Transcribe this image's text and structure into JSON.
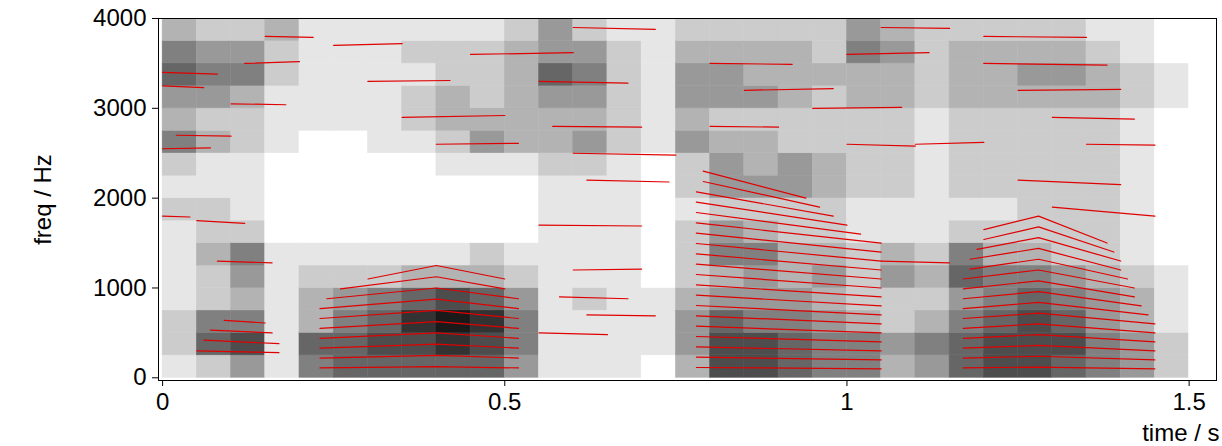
{
  "chart_data": {
    "type": "spectrogram",
    "x_label": "time / s",
    "y_label": "freq / Hz",
    "xlim": [
      -0.006,
      1.54
    ],
    "ylim": [
      -30,
      4000
    ],
    "xticks": [
      0,
      0.5,
      1,
      1.5
    ],
    "yticks": [
      0,
      1000,
      2000,
      3000,
      4000
    ],
    "color": "#e00000",
    "zlim": [
      0,
      9
    ],
    "time_bins": [
      0,
      0.05,
      0.1,
      0.15,
      0.2,
      0.25,
      0.3,
      0.35,
      0.4,
      0.45,
      0.5,
      0.55,
      0.6,
      0.65,
      0.7,
      0.75,
      0.8,
      0.85,
      0.9,
      0.95,
      1,
      1.05,
      1.1,
      1.15,
      1.2,
      1.25,
      1.3,
      1.35,
      1.4,
      1.45,
      1.5,
      1.55
    ],
    "freq_bins": [
      0,
      250,
      500,
      750,
      1000,
      1250,
      1500,
      1750,
      2000,
      2250,
      2500,
      2750,
      3000,
      3250,
      3500,
      3750,
      4000
    ],
    "intensity": [
      [
        1,
        2,
        2,
        1,
        1,
        1,
        1,
        2,
        1,
        2,
        5,
        3,
        4,
        6,
        5,
        3
      ],
      [
        2,
        6,
        5,
        2,
        2,
        3,
        2,
        2,
        1,
        1,
        3,
        2,
        4,
        5,
        4,
        2
      ],
      [
        4,
        7,
        5,
        3,
        4,
        5,
        2,
        1,
        1,
        1,
        2,
        2,
        3,
        5,
        4,
        2
      ],
      [
        1,
        1,
        1,
        1,
        1,
        1,
        0,
        0,
        0,
        0,
        1,
        1,
        1,
        2,
        2,
        3
      ],
      [
        5,
        6,
        3,
        3,
        2,
        1,
        0,
        0,
        0,
        0,
        0,
        1,
        1,
        1,
        1,
        1
      ],
      [
        6,
        6,
        5,
        4,
        2,
        1,
        0,
        0,
        0,
        0,
        0,
        1,
        1,
        1,
        1,
        1
      ],
      [
        6,
        7,
        6,
        5,
        2,
        1,
        0,
        0,
        0,
        0,
        1,
        1,
        1,
        1,
        1,
        1
      ],
      [
        6,
        7,
        8,
        6,
        3,
        1,
        0,
        0,
        0,
        0,
        1,
        2,
        2,
        1,
        2,
        1
      ],
      [
        6,
        8,
        9,
        7,
        3,
        1,
        0,
        0,
        0,
        1,
        2,
        3,
        3,
        2,
        2,
        1
      ],
      [
        6,
        7,
        8,
        6,
        3,
        2,
        0,
        0,
        0,
        1,
        4,
        3,
        2,
        2,
        2,
        1
      ],
      [
        4,
        5,
        5,
        4,
        2,
        1,
        0,
        0,
        0,
        1,
        3,
        3,
        3,
        3,
        3,
        2
      ],
      [
        1,
        1,
        1,
        1,
        1,
        1,
        1,
        1,
        1,
        2,
        3,
        3,
        4,
        6,
        4,
        4
      ],
      [
        1,
        1,
        1,
        2,
        1,
        1,
        1,
        1,
        1,
        2,
        4,
        3,
        4,
        5,
        4,
        2
      ],
      [
        1,
        1,
        1,
        1,
        1,
        1,
        1,
        1,
        1,
        1,
        2,
        2,
        2,
        2,
        2,
        1
      ],
      [
        0,
        1,
        1,
        1,
        0,
        0,
        0,
        0,
        0,
        0,
        1,
        1,
        1,
        1,
        1,
        1
      ],
      [
        3,
        4,
        4,
        3,
        2,
        2,
        2,
        1,
        2,
        2,
        4,
        3,
        4,
        4,
        3,
        2
      ],
      [
        7,
        7,
        6,
        4,
        3,
        5,
        4,
        2,
        4,
        4,
        3,
        2,
        4,
        4,
        3,
        2
      ],
      [
        7,
        7,
        5,
        4,
        4,
        5,
        3,
        2,
        4,
        3,
        3,
        2,
        4,
        3,
        3,
        2
      ],
      [
        6,
        6,
        5,
        4,
        3,
        3,
        2,
        2,
        4,
        4,
        2,
        2,
        3,
        3,
        3,
        2
      ],
      [
        5,
        5,
        4,
        3,
        4,
        3,
        2,
        2,
        3,
        3,
        2,
        2,
        2,
        3,
        2,
        2
      ],
      [
        5,
        5,
        3,
        2,
        2,
        2,
        1,
        1,
        2,
        2,
        2,
        2,
        3,
        3,
        5,
        4
      ],
      [
        3,
        4,
        2,
        2,
        4,
        3,
        1,
        1,
        2,
        2,
        2,
        2,
        3,
        3,
        4,
        3
      ],
      [
        4,
        5,
        3,
        2,
        3,
        2,
        1,
        1,
        1,
        1,
        1,
        1,
        2,
        2,
        2,
        2
      ],
      [
        6,
        6,
        5,
        4,
        6,
        5,
        2,
        1,
        2,
        2,
        2,
        2,
        3,
        3,
        3,
        2
      ],
      [
        7,
        7,
        6,
        5,
        5,
        3,
        2,
        1,
        2,
        2,
        2,
        2,
        3,
        3,
        3,
        2
      ],
      [
        7,
        7,
        7,
        6,
        5,
        3,
        2,
        2,
        2,
        2,
        2,
        2,
        3,
        4,
        3,
        2
      ],
      [
        6,
        7,
        6,
        5,
        4,
        2,
        2,
        2,
        2,
        2,
        2,
        2,
        3,
        4,
        3,
        2
      ],
      [
        5,
        5,
        4,
        4,
        3,
        2,
        2,
        2,
        2,
        2,
        2,
        2,
        3,
        3,
        2,
        1
      ],
      [
        4,
        4,
        3,
        3,
        2,
        1,
        1,
        1,
        1,
        1,
        1,
        1,
        2,
        2,
        1,
        1
      ],
      [
        2,
        2,
        1,
        1,
        1,
        0,
        0,
        0,
        0,
        0,
        0,
        0,
        1,
        1,
        0,
        0
      ],
      [
        0,
        0,
        0,
        0,
        0,
        0,
        0,
        0,
        0,
        0,
        0,
        0,
        0,
        0,
        0,
        0
      ]
    ],
    "tracks": [
      [
        [
          0.23,
          110
        ],
        [
          0.4,
          125
        ],
        [
          0.52,
          110
        ]
      ],
      [
        [
          0.23,
          220
        ],
        [
          0.4,
          250
        ],
        [
          0.52,
          220
        ]
      ],
      [
        [
          0.23,
          330
        ],
        [
          0.4,
          375
        ],
        [
          0.52,
          330
        ]
      ],
      [
        [
          0.23,
          440
        ],
        [
          0.4,
          500
        ],
        [
          0.52,
          440
        ]
      ],
      [
        [
          0.23,
          550
        ],
        [
          0.4,
          625
        ],
        [
          0.52,
          550
        ]
      ],
      [
        [
          0.23,
          660
        ],
        [
          0.4,
          750
        ],
        [
          0.52,
          660
        ]
      ],
      [
        [
          0.23,
          770
        ],
        [
          0.4,
          875
        ],
        [
          0.52,
          770
        ]
      ],
      [
        [
          0.24,
          880
        ],
        [
          0.4,
          1000
        ],
        [
          0.52,
          880
        ]
      ],
      [
        [
          0.26,
          990
        ],
        [
          0.4,
          1125
        ],
        [
          0.5,
          990
        ]
      ],
      [
        [
          0.3,
          1100
        ],
        [
          0.4,
          1250
        ],
        [
          0.5,
          1100
        ]
      ],
      [
        [
          0.78,
          115
        ],
        [
          1.05,
          100
        ]
      ],
      [
        [
          0.78,
          230
        ],
        [
          1.05,
          200
        ]
      ],
      [
        [
          0.78,
          345
        ],
        [
          1.05,
          300
        ]
      ],
      [
        [
          0.78,
          460
        ],
        [
          1.05,
          400
        ]
      ],
      [
        [
          0.78,
          575
        ],
        [
          1.05,
          500
        ]
      ],
      [
        [
          0.78,
          690
        ],
        [
          1.05,
          600
        ]
      ],
      [
        [
          0.78,
          805
        ],
        [
          1.05,
          700
        ]
      ],
      [
        [
          0.78,
          920
        ],
        [
          1.05,
          800
        ]
      ],
      [
        [
          0.78,
          1035
        ],
        [
          1.05,
          900
        ]
      ],
      [
        [
          0.78,
          1150
        ],
        [
          1.05,
          1000
        ]
      ],
      [
        [
          0.78,
          1265
        ],
        [
          1.05,
          1100
        ]
      ],
      [
        [
          0.78,
          1380
        ],
        [
          1.05,
          1200
        ]
      ],
      [
        [
          0.78,
          1495
        ],
        [
          1.05,
          1300
        ]
      ],
      [
        [
          0.78,
          1610
        ],
        [
          1.05,
          1400
        ]
      ],
      [
        [
          0.78,
          1725
        ],
        [
          1.05,
          1500
        ]
      ],
      [
        [
          0.78,
          1840
        ],
        [
          1.02,
          1600
        ]
      ],
      [
        [
          0.78,
          1955
        ],
        [
          1.0,
          1700
        ]
      ],
      [
        [
          0.78,
          2070
        ],
        [
          0.98,
          1800
        ]
      ],
      [
        [
          0.79,
          2185
        ],
        [
          0.96,
          1900
        ]
      ],
      [
        [
          0.79,
          2300
        ],
        [
          0.94,
          2000
        ]
      ],
      [
        [
          1.17,
          110
        ],
        [
          1.28,
          120
        ],
        [
          1.45,
          100
        ]
      ],
      [
        [
          1.17,
          220
        ],
        [
          1.28,
          240
        ],
        [
          1.45,
          200
        ]
      ],
      [
        [
          1.17,
          330
        ],
        [
          1.28,
          360
        ],
        [
          1.45,
          300
        ]
      ],
      [
        [
          1.17,
          440
        ],
        [
          1.28,
          480
        ],
        [
          1.45,
          400
        ]
      ],
      [
        [
          1.17,
          550
        ],
        [
          1.28,
          600
        ],
        [
          1.45,
          500
        ]
      ],
      [
        [
          1.17,
          660
        ],
        [
          1.28,
          720
        ],
        [
          1.45,
          600
        ]
      ],
      [
        [
          1.17,
          770
        ],
        [
          1.28,
          840
        ],
        [
          1.44,
          700
        ]
      ],
      [
        [
          1.17,
          880
        ],
        [
          1.28,
          960
        ],
        [
          1.43,
          800
        ]
      ],
      [
        [
          1.17,
          990
        ],
        [
          1.28,
          1080
        ],
        [
          1.42,
          900
        ]
      ],
      [
        [
          1.17,
          1100
        ],
        [
          1.28,
          1200
        ],
        [
          1.42,
          1000
        ]
      ],
      [
        [
          1.18,
          1210
        ],
        [
          1.28,
          1320
        ],
        [
          1.41,
          1100
        ]
      ],
      [
        [
          1.18,
          1320
        ],
        [
          1.28,
          1440
        ],
        [
          1.4,
          1200
        ]
      ],
      [
        [
          1.19,
          1430
        ],
        [
          1.28,
          1560
        ],
        [
          1.4,
          1300
        ]
      ],
      [
        [
          1.2,
          1540
        ],
        [
          1.28,
          1680
        ],
        [
          1.39,
          1400
        ]
      ],
      [
        [
          1.2,
          1650
        ],
        [
          1.28,
          1800
        ],
        [
          1.38,
          1500
        ]
      ],
      [
        [
          0.05,
          300
        ],
        [
          0.17,
          280
        ]
      ],
      [
        [
          0.06,
          420
        ],
        [
          0.17,
          380
        ]
      ],
      [
        [
          0.07,
          530
        ],
        [
          0.16,
          500
        ]
      ],
      [
        [
          0.09,
          640
        ],
        [
          0.15,
          610
        ]
      ],
      [
        [
          0.08,
          1300
        ],
        [
          0.16,
          1280
        ]
      ],
      [
        [
          0.0,
          3400
        ],
        [
          0.08,
          3380
        ]
      ],
      [
        [
          0.0,
          3250
        ],
        [
          0.06,
          3230
        ]
      ],
      [
        [
          0.02,
          2700
        ],
        [
          0.1,
          2690
        ]
      ],
      [
        [
          0.0,
          2550
        ],
        [
          0.07,
          2560
        ]
      ],
      [
        [
          0.12,
          3500
        ],
        [
          0.2,
          3520
        ]
      ],
      [
        [
          0.1,
          3050
        ],
        [
          0.18,
          3040
        ]
      ],
      [
        [
          0.05,
          1750
        ],
        [
          0.12,
          1720
        ]
      ],
      [
        [
          0.0,
          1800
        ],
        [
          0.04,
          1790
        ]
      ],
      [
        [
          0.15,
          3800
        ],
        [
          0.22,
          3790
        ]
      ],
      [
        [
          0.25,
          3700
        ],
        [
          0.35,
          3720
        ]
      ],
      [
        [
          0.3,
          3300
        ],
        [
          0.42,
          3310
        ]
      ],
      [
        [
          0.35,
          2900
        ],
        [
          0.5,
          2920
        ]
      ],
      [
        [
          0.4,
          2600
        ],
        [
          0.52,
          2610
        ]
      ],
      [
        [
          0.45,
          3600
        ],
        [
          0.6,
          3620
        ]
      ],
      [
        [
          0.55,
          3300
        ],
        [
          0.68,
          3280
        ]
      ],
      [
        [
          0.57,
          2800
        ],
        [
          0.7,
          2790
        ]
      ],
      [
        [
          0.6,
          2500
        ],
        [
          0.75,
          2480
        ]
      ],
      [
        [
          0.6,
          3900
        ],
        [
          0.72,
          3880
        ]
      ],
      [
        [
          0.55,
          1700
        ],
        [
          0.7,
          1690
        ]
      ],
      [
        [
          0.58,
          900
        ],
        [
          0.68,
          880
        ]
      ],
      [
        [
          0.6,
          1200
        ],
        [
          0.7,
          1210
        ]
      ],
      [
        [
          0.62,
          2200
        ],
        [
          0.74,
          2180
        ]
      ],
      [
        [
          0.55,
          500
        ],
        [
          0.65,
          480
        ]
      ],
      [
        [
          0.62,
          700
        ],
        [
          0.72,
          690
        ]
      ],
      [
        [
          0.8,
          3500
        ],
        [
          0.92,
          3490
        ]
      ],
      [
        [
          0.85,
          3200
        ],
        [
          0.98,
          3220
        ]
      ],
      [
        [
          0.8,
          2800
        ],
        [
          0.9,
          2790
        ]
      ],
      [
        [
          0.95,
          3000
        ],
        [
          1.08,
          3010
        ]
      ],
      [
        [
          1.0,
          3600
        ],
        [
          1.12,
          3620
        ]
      ],
      [
        [
          1.05,
          3900
        ],
        [
          1.15,
          3890
        ]
      ],
      [
        [
          1.1,
          2600
        ],
        [
          1.2,
          2620
        ]
      ],
      [
        [
          1.0,
          2600
        ],
        [
          1.1,
          2580
        ]
      ],
      [
        [
          1.05,
          1300
        ],
        [
          1.15,
          1280
        ]
      ],
      [
        [
          1.2,
          3800
        ],
        [
          1.35,
          3790
        ]
      ],
      [
        [
          1.2,
          3500
        ],
        [
          1.38,
          3480
        ]
      ],
      [
        [
          1.25,
          3200
        ],
        [
          1.4,
          3210
        ]
      ],
      [
        [
          1.3,
          2900
        ],
        [
          1.42,
          2880
        ]
      ],
      [
        [
          1.35,
          2600
        ],
        [
          1.45,
          2590
        ]
      ],
      [
        [
          1.25,
          2200
        ],
        [
          1.4,
          2150
        ]
      ],
      [
        [
          1.3,
          1900
        ],
        [
          1.45,
          1800
        ]
      ]
    ]
  }
}
